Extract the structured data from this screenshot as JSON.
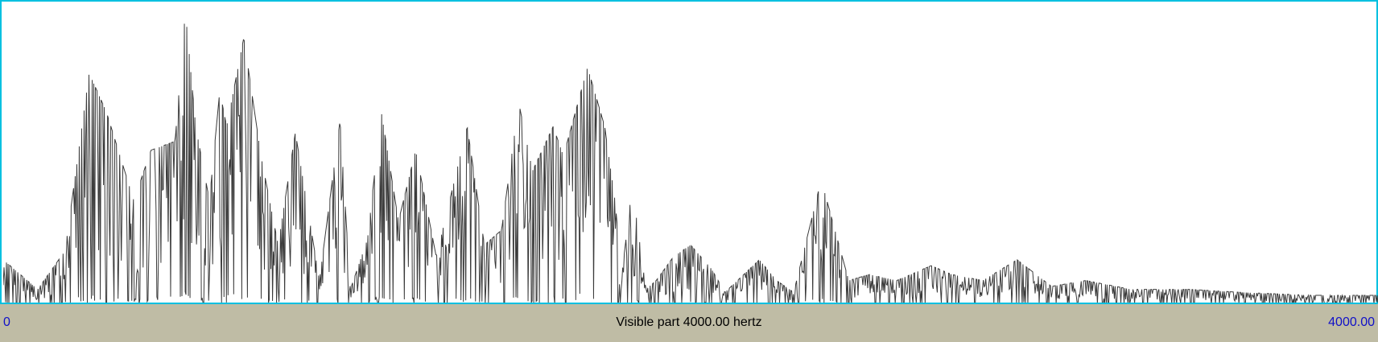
{
  "colors": {
    "border": "#00c0e0",
    "spectrum": "#3a3a3a",
    "bar_bg": "#bfbca5",
    "axis_label": "#1010c8"
  },
  "bottom_bar": {
    "left": "0",
    "center": "Visible part 4000.00 hertz",
    "right": "4000.00"
  },
  "chart_data": {
    "type": "line",
    "title": "",
    "xlabel": "",
    "ylabel": "",
    "xlim": [
      0,
      4000
    ],
    "ylim": [
      0,
      1
    ],
    "grid": false,
    "peaks": {
      "x": [
        0,
        100,
        180,
        250,
        300,
        380,
        430,
        500,
        530,
        560,
        600,
        630,
        650,
        700,
        750,
        800,
        850,
        920,
        980,
        1010,
        1060,
        1100,
        1150,
        1200,
        1260,
        1350,
        1400,
        1450,
        1500,
        1540,
        1600,
        1630,
        1700,
        1750,
        1780,
        1800,
        1830,
        1870,
        1900,
        1950,
        2000,
        2060,
        2100,
        2200,
        2250,
        2300,
        2380,
        2460,
        2520,
        2600,
        2700,
        2760,
        2850,
        2950,
        3050,
        3150,
        3280,
        3450,
        3600,
        3800,
        4000
      ],
      "y": [
        0.15,
        0.05,
        0.18,
        0.78,
        0.65,
        0.35,
        0.52,
        0.55,
        0.99,
        0.6,
        0.35,
        0.72,
        0.6,
        0.9,
        0.5,
        0.2,
        0.58,
        0.08,
        0.62,
        0.05,
        0.22,
        0.65,
        0.28,
        0.52,
        0.16,
        0.6,
        0.2,
        0.25,
        0.68,
        0.45,
        0.6,
        0.5,
        0.8,
        0.6,
        0.35,
        0.1,
        0.4,
        0.05,
        0.08,
        0.16,
        0.2,
        0.12,
        0.04,
        0.15,
        0.08,
        0.04,
        0.42,
        0.08,
        0.1,
        0.08,
        0.13,
        0.1,
        0.08,
        0.15,
        0.06,
        0.08,
        0.05,
        0.05,
        0.04,
        0.03,
        0.03
      ]
    }
  }
}
